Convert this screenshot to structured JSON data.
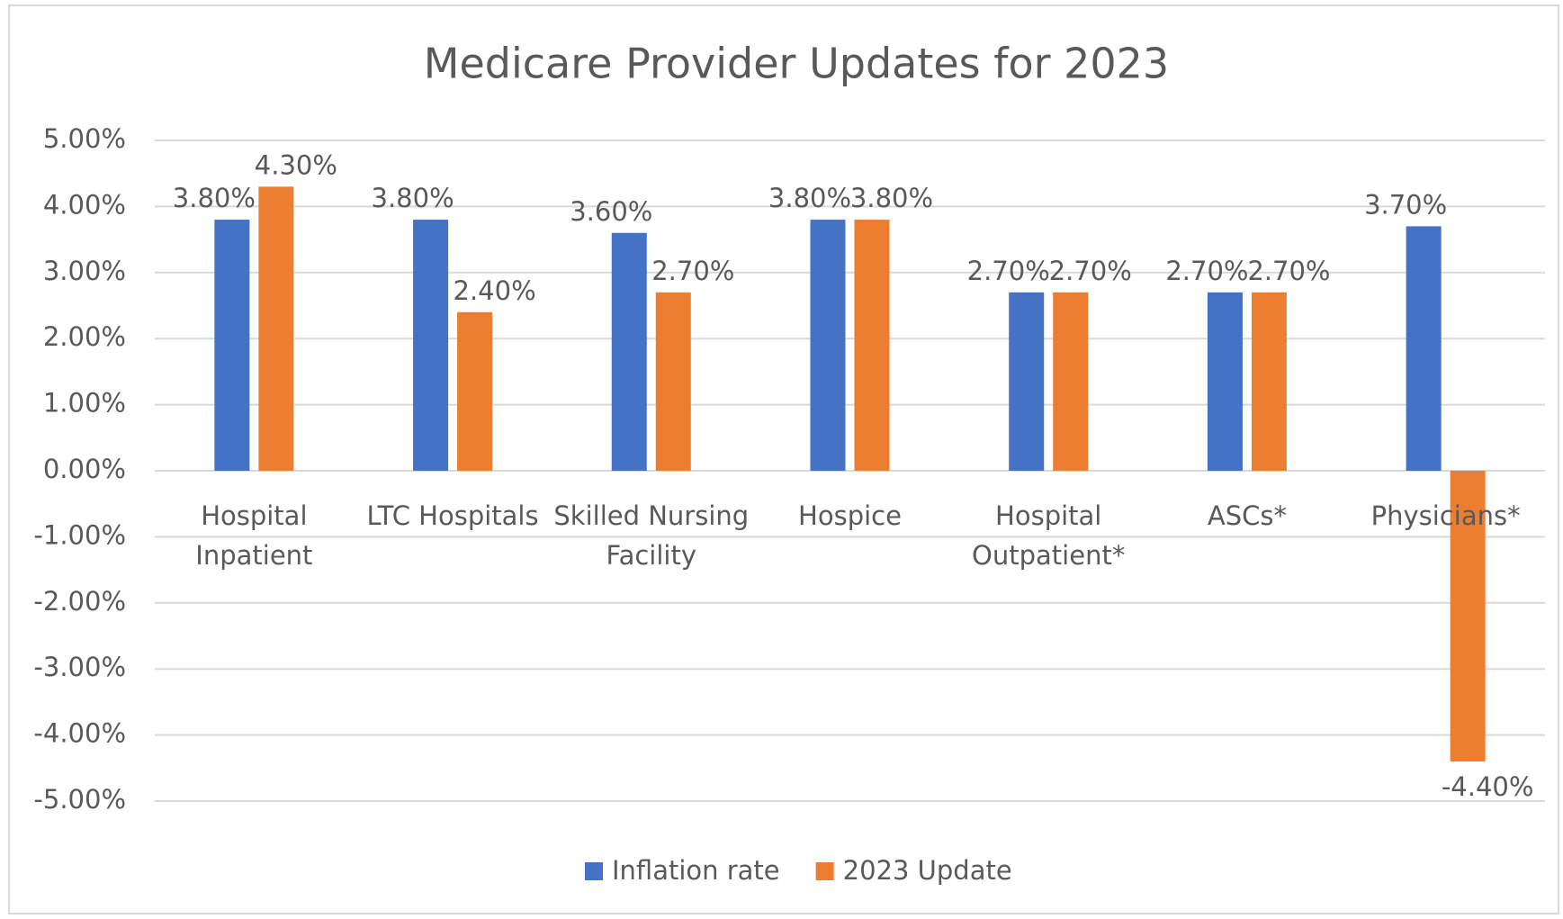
{
  "chart_data": {
    "type": "bar",
    "title": "Medicare Provider Updates for 2023",
    "categories": [
      "Hospital Inpatient",
      "LTC Hospitals",
      "Skilled Nursing Facility",
      "Hospice",
      "Hospital Outpatient*",
      "ASCs*",
      "Physicians*"
    ],
    "series": [
      {
        "name": "Inflation rate",
        "color": "#4472c4",
        "values": [
          3.8,
          3.8,
          3.6,
          3.8,
          2.7,
          2.7,
          3.7
        ],
        "value_labels": [
          "3.80%",
          "3.80%",
          "3.60%",
          "3.80%",
          "2.70%",
          "2.70%",
          "3.70%"
        ]
      },
      {
        "name": "2023 Update",
        "color": "#ed7d31",
        "values": [
          4.3,
          2.4,
          2.7,
          3.8,
          2.7,
          2.7,
          -4.4
        ],
        "value_labels": [
          "4.30%",
          "2.40%",
          "2.70%",
          "3.80%",
          "2.70%",
          "2.70%",
          "-4.40%"
        ]
      }
    ],
    "ylim": [
      -5,
      5
    ],
    "yticks": [
      {
        "value": -5,
        "label": "-5.00%"
      },
      {
        "value": -4,
        "label": "-4.00%"
      },
      {
        "value": -3,
        "label": "-3.00%"
      },
      {
        "value": -2,
        "label": "-2.00%"
      },
      {
        "value": -1,
        "label": "-1.00%"
      },
      {
        "value": 0,
        "label": "0.00%"
      },
      {
        "value": 1,
        "label": "1.00%"
      },
      {
        "value": 2,
        "label": "2.00%"
      },
      {
        "value": 3,
        "label": "3.00%"
      },
      {
        "value": 4,
        "label": "4.00%"
      },
      {
        "value": 5,
        "label": "5.00%"
      }
    ],
    "grid": true,
    "legend": "bottom"
  }
}
